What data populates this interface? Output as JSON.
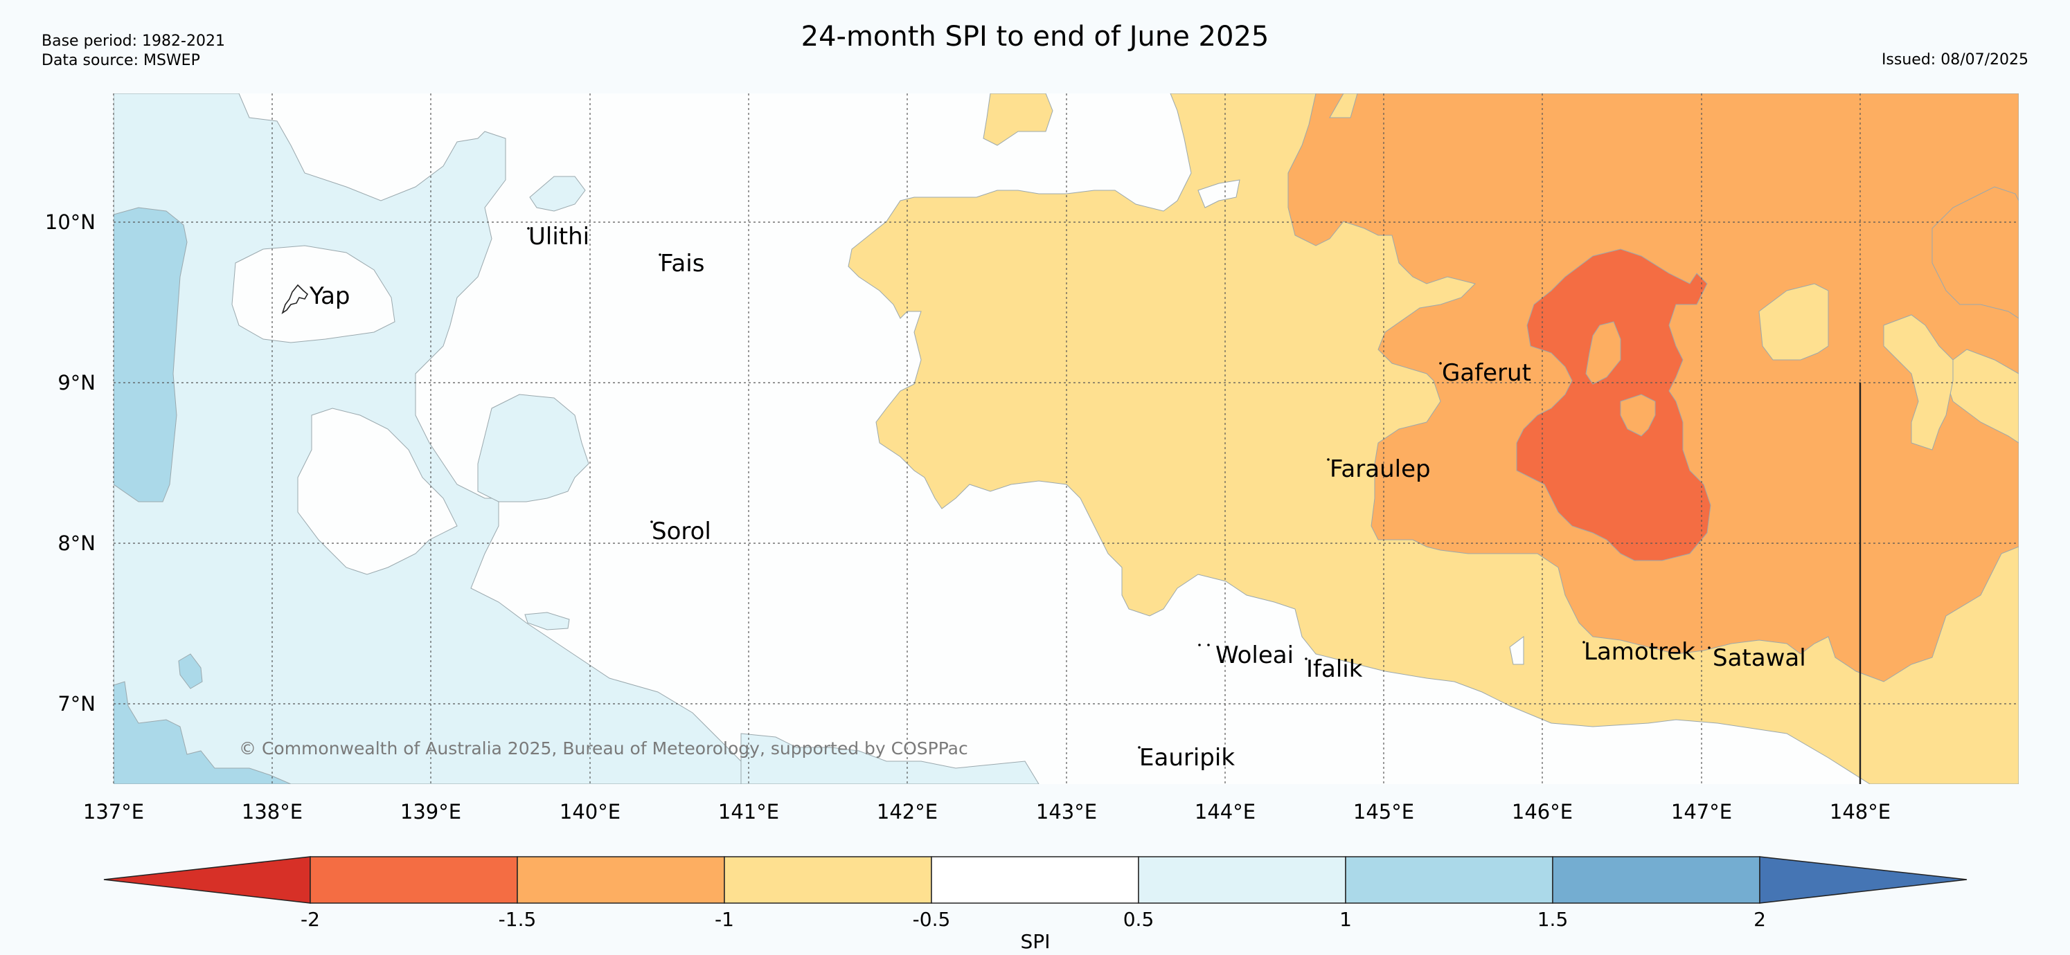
{
  "header": {
    "title": "24-month SPI to end of June 2025",
    "base_period": "Base period: 1982-2021",
    "data_source": "Data source: MSWEP",
    "issued": "Issued: 08/07/2025"
  },
  "copyright": "© Commonwealth of Australia 2025, Bureau of Meteorology, supported by COSPPac",
  "longitudes": [
    "137°E",
    "138°E",
    "139°E",
    "140°E",
    "141°E",
    "142°E",
    "143°E",
    "144°E",
    "145°E",
    "146°E",
    "147°E",
    "148°E"
  ],
  "latitudes": [
    "10°N",
    "9°N",
    "8°N",
    "7°N"
  ],
  "places": [
    {
      "name": "Ulithi"
    },
    {
      "name": "Fais"
    },
    {
      "name": "Yap"
    },
    {
      "name": "Sorol"
    },
    {
      "name": "Gaferut"
    },
    {
      "name": "Faraulep"
    },
    {
      "name": "Woleai"
    },
    {
      "name": "Ifalik"
    },
    {
      "name": "Lamotrek"
    },
    {
      "name": "Satawal"
    },
    {
      "name": "Eauripik"
    }
  ],
  "colorbar": {
    "label": "SPI",
    "ticks": [
      "-2",
      "-1.5",
      "-1",
      "-0.5",
      "0.5",
      "1",
      "1.5",
      "2"
    ],
    "colors": {
      "below_-2": "#d73027",
      "-2_-1.5": "#f46d43",
      "-1.5_-1": "#fdae61",
      "-1_-0.5": "#fee090",
      "-0.5_0.5": "#ffffff",
      "0.5_1": "#e0f3f8",
      "1_1.5": "#abd9e9",
      "1.5_2": "#74add1",
      "above_2": "#4575b4"
    }
  }
}
